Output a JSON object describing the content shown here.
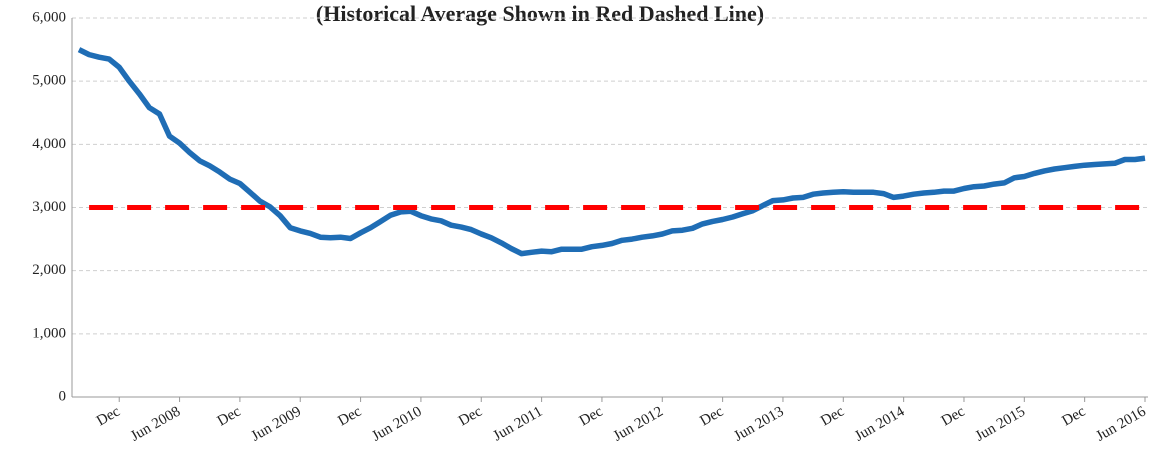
{
  "chart_data": {
    "type": "line",
    "subtitle": "(Historical Average Shown in Red Dashed Line)",
    "categories": [
      null,
      null,
      null,
      null,
      "Dec",
      null,
      null,
      null,
      null,
      null,
      "Jun 2008",
      null,
      null,
      null,
      null,
      null,
      "Dec",
      null,
      null,
      null,
      null,
      null,
      "Jun 2009",
      null,
      null,
      null,
      null,
      null,
      "Dec",
      null,
      null,
      null,
      null,
      null,
      "Jun 2010",
      null,
      null,
      null,
      null,
      null,
      "Dec",
      null,
      null,
      null,
      null,
      null,
      "Jun 2011",
      null,
      null,
      null,
      null,
      null,
      "Dec",
      null,
      null,
      null,
      null,
      null,
      "Jun 2012",
      null,
      null,
      null,
      null,
      null,
      "Dec",
      null,
      null,
      null,
      null,
      null,
      "Jun 2013",
      null,
      null,
      null,
      null,
      null,
      "Dec",
      null,
      null,
      null,
      null,
      null,
      "Jun 2014",
      null,
      null,
      null,
      null,
      null,
      "Dec",
      null,
      null,
      null,
      null,
      null,
      "Jun 2015",
      null,
      null,
      null,
      null,
      null,
      "Dec",
      null,
      null,
      null,
      null,
      null,
      "Jun 2016"
    ],
    "series": [
      {
        "color": "#1f6db5",
        "dashed": false,
        "values": [
          5500,
          5420,
          5380,
          5350,
          5220,
          5000,
          4800,
          4580,
          4480,
          4130,
          4020,
          3870,
          3740,
          3660,
          3560,
          3450,
          3380,
          3240,
          3100,
          3010,
          2870,
          2680,
          2630,
          2590,
          2530,
          2520,
          2530,
          2510,
          2600,
          2680,
          2780,
          2880,
          2930,
          2940,
          2870,
          2820,
          2790,
          2720,
          2690,
          2650,
          2580,
          2520,
          2440,
          2350,
          2270,
          2290,
          2310,
          2300,
          2340,
          2340,
          2340,
          2380,
          2400,
          2430,
          2480,
          2500,
          2530,
          2550,
          2580,
          2630,
          2640,
          2670,
          2740,
          2780,
          2810,
          2850,
          2900,
          2950,
          3030,
          3110,
          3120,
          3150,
          3160,
          3210,
          3230,
          3240,
          3250,
          3240,
          3240,
          3240,
          3220,
          3160,
          3180,
          3210,
          3230,
          3240,
          3260,
          3260,
          3300,
          3330,
          3340,
          3370,
          3390,
          3470,
          3490,
          3540,
          3580,
          3610,
          3630,
          3650,
          3670,
          3680,
          3690,
          3700,
          3760,
          3760,
          3780
        ]
      },
      {
        "color": "#ff0000",
        "dashed": true,
        "values": [
          null,
          3000,
          3000,
          3000,
          3000,
          3000,
          3000,
          3000,
          3000,
          3000,
          3000,
          3000,
          3000,
          3000,
          3000,
          3000,
          3000,
          3000,
          3000,
          3000,
          3000,
          3000,
          3000,
          3000,
          3000,
          3000,
          3000,
          3000,
          3000,
          3000,
          3000,
          3000,
          3000,
          3000,
          3000,
          3000,
          3000,
          3000,
          3000,
          3000,
          3000,
          3000,
          3000,
          3000,
          3000,
          3000,
          3000,
          3000,
          3000,
          3000,
          3000,
          3000,
          3000,
          3000,
          3000,
          3000,
          3000,
          3000,
          3000,
          3000,
          3000,
          3000,
          3000,
          3000,
          3000,
          3000,
          3000,
          3000,
          3000,
          3000,
          3000,
          3000,
          3000,
          3000,
          3000,
          3000,
          3000,
          3000,
          3000,
          3000,
          3000,
          3000,
          3000,
          3000,
          3000,
          3000,
          3000,
          3000,
          3000,
          3000,
          3000,
          3000,
          3000,
          3000,
          3000,
          3000,
          3000,
          3000,
          3000,
          3000,
          3000,
          3000,
          3000,
          3000,
          3000,
          3000,
          3000
        ]
      }
    ],
    "ylim": [
      0,
      6000
    ],
    "yticks": [
      0,
      {
        "value": 1000,
        "label": "1,000"
      },
      {
        "value": 2000,
        "label": "2,000"
      },
      {
        "value": 3000,
        "label": "3,000"
      },
      {
        "value": 4000,
        "label": "4,000"
      },
      {
        "value": 5000,
        "label": "5,000"
      },
      {
        "value": 6000,
        "label": "6,000"
      }
    ],
    "grid": true
  }
}
